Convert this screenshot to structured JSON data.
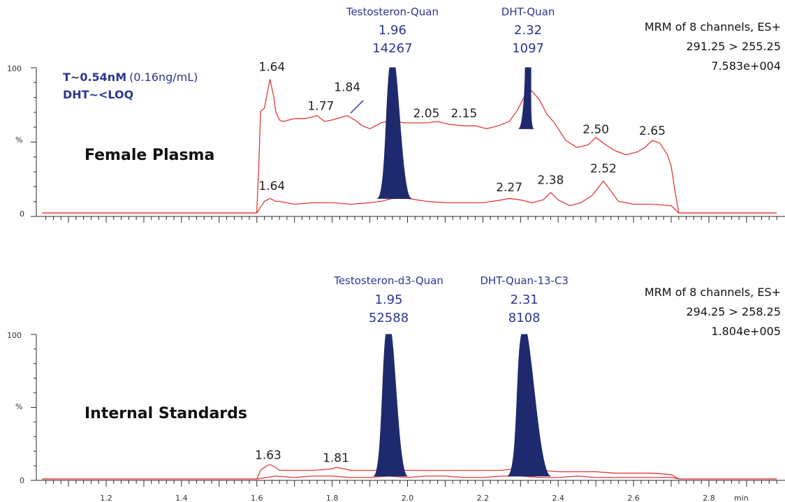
{
  "chart_data": [
    {
      "type": "line",
      "title": "Female Plasma",
      "header": [
        "MRM of 8 channels, ES+",
        "291.25 > 255.25",
        "7.583e+004"
      ],
      "note": {
        "line1_bold": "T~0.54nM",
        "line1_rest": "(0.16ng/mL)",
        "line2": "DHT~<LOQ"
      },
      "ylabels": [
        "100",
        "%",
        "0"
      ],
      "xlim": [
        1.03,
        2.98
      ],
      "ylim": [
        0,
        100
      ],
      "series": [
        {
          "kind": "upper",
          "x": [
            1.6,
            1.605,
            1.61,
            1.62,
            1.635,
            1.645,
            1.65,
            1.66,
            1.67,
            1.7,
            1.73,
            1.76,
            1.78,
            1.8,
            1.84,
            1.86,
            1.88,
            1.9,
            1.93,
            1.96,
            1.99,
            2.02,
            2.05,
            2.08,
            2.11,
            2.15,
            2.18,
            2.21,
            2.24,
            2.27,
            2.29,
            2.31,
            2.33,
            2.35,
            2.37,
            2.39,
            2.42,
            2.45,
            2.48,
            2.5,
            2.52,
            2.55,
            2.58,
            2.61,
            2.63,
            2.65,
            2.67,
            2.69,
            2.7,
            2.71,
            2.72
          ],
          "y": [
            3,
            30,
            70,
            72,
            92,
            80,
            70,
            64,
            63,
            65,
            65,
            67,
            63,
            64,
            67,
            64,
            60,
            58,
            62,
            64,
            62,
            62,
            62,
            63,
            61,
            60,
            60,
            58,
            60,
            63,
            70,
            80,
            84,
            78,
            68,
            62,
            50,
            45,
            47,
            52,
            48,
            43,
            40,
            42,
            45,
            50,
            48,
            40,
            32,
            15,
            0
          ]
        },
        {
          "kind": "lower",
          "x": [
            1.6,
            1.61,
            1.62,
            1.635,
            1.65,
            1.66,
            1.7,
            1.75,
            1.8,
            1.85,
            1.9,
            1.93,
            1.96,
            2.0,
            2.05,
            2.1,
            2.15,
            2.2,
            2.25,
            2.27,
            2.3,
            2.33,
            2.36,
            2.38,
            2.4,
            2.43,
            2.46,
            2.49,
            2.52,
            2.54,
            2.56,
            2.6,
            2.65,
            2.7,
            2.72
          ],
          "y": [
            0,
            4,
            8,
            10,
            8,
            8,
            6,
            7,
            7,
            6,
            7,
            8,
            10,
            10,
            8,
            7,
            7,
            7,
            9,
            10,
            9,
            7,
            9,
            14,
            9,
            5,
            7,
            12,
            22,
            15,
            8,
            6,
            6,
            5,
            0
          ]
        }
      ],
      "peaks": [
        {
          "label": "Testosteron-Quan",
          "rt": "1.96",
          "area": "14267",
          "x": 1.96,
          "left": 1.92,
          "right": 2.01,
          "base": 10,
          "height": 100
        },
        {
          "label": "DHT-Quan",
          "rt": "2.32",
          "area": "1097",
          "x": 2.32,
          "left": 2.295,
          "right": 2.335,
          "base": 58,
          "height": 100
        }
      ],
      "annotations": [
        {
          "text": "1.64",
          "x": 1.64,
          "y": 94
        },
        {
          "text": "1.77",
          "x": 1.77,
          "y": 67
        },
        {
          "text": "1.84",
          "x": 1.84,
          "y": 80
        },
        {
          "text": "2.05",
          "x": 2.05,
          "y": 62
        },
        {
          "text": "2.15",
          "x": 2.15,
          "y": 62
        },
        {
          "text": "2.50",
          "x": 2.5,
          "y": 51
        },
        {
          "text": "2.65",
          "x": 2.65,
          "y": 50
        },
        {
          "text": "1.64",
          "x": 1.64,
          "y": 12
        },
        {
          "text": "2.27",
          "x": 2.27,
          "y": 11
        },
        {
          "text": "2.38",
          "x": 2.38,
          "y": 16
        },
        {
          "text": "2.52",
          "x": 2.52,
          "y": 24
        }
      ]
    },
    {
      "type": "line",
      "title": "Internal Standards",
      "header": [
        "MRM of 8 channels, ES+",
        "294.25 > 258.25",
        "1.804e+005"
      ],
      "ylabels": [
        "100",
        "%",
        "0"
      ],
      "xlim": [
        1.03,
        2.98
      ],
      "ylim": [
        0,
        100
      ],
      "xticks": [
        "1.2",
        "1.4",
        "1.6",
        "1.8",
        "2.0",
        "2.2",
        "2.4",
        "2.6",
        "2.8"
      ],
      "xunit": "min",
      "series": [
        {
          "kind": "upper",
          "x": [
            1.6,
            1.61,
            1.625,
            1.635,
            1.65,
            1.66,
            1.7,
            1.75,
            1.8,
            1.81,
            1.85,
            1.9,
            1.95,
            2.0,
            2.05,
            2.1,
            2.15,
            2.2,
            2.25,
            2.28,
            2.32,
            2.35,
            2.4,
            2.45,
            2.5,
            2.55,
            2.6,
            2.65,
            2.7,
            2.72
          ],
          "y": [
            0,
            6,
            9,
            10,
            8,
            6,
            6,
            6,
            7,
            8,
            6,
            6,
            6,
            6,
            6,
            6,
            6,
            6,
            6,
            7,
            7,
            6,
            5,
            5,
            5,
            4,
            4,
            4,
            3,
            0
          ]
        },
        {
          "kind": "lower",
          "x": [
            1.6,
            1.65,
            1.7,
            1.75,
            1.8,
            1.85,
            1.9,
            1.95,
            2.0,
            2.05,
            2.1,
            2.15,
            2.2,
            2.25,
            2.3,
            2.35,
            2.4,
            2.45,
            2.5,
            2.55,
            2.6,
            2.65,
            2.7,
            2.72
          ],
          "y": [
            0,
            2,
            1,
            2,
            2,
            1,
            1,
            2,
            1,
            2,
            2,
            1,
            1,
            2,
            2,
            1,
            1,
            2,
            1,
            1,
            1,
            1,
            1,
            0
          ]
        }
      ],
      "peaks": [
        {
          "label": "Testosteron-d3-Quan",
          "rt": "1.95",
          "area": "52588",
          "x": 1.95,
          "left": 1.91,
          "right": 2.0,
          "base": 2,
          "height": 100
        },
        {
          "label": "DHT-Quan-13-C3",
          "rt": "2.31",
          "area": "8108",
          "x": 2.31,
          "left": 2.265,
          "right": 2.38,
          "base": 2,
          "height": 100
        }
      ],
      "annotations": [
        {
          "text": "1.63",
          "x": 1.63,
          "y": 10
        },
        {
          "text": "1.81",
          "x": 1.81,
          "y": 8
        }
      ]
    }
  ]
}
